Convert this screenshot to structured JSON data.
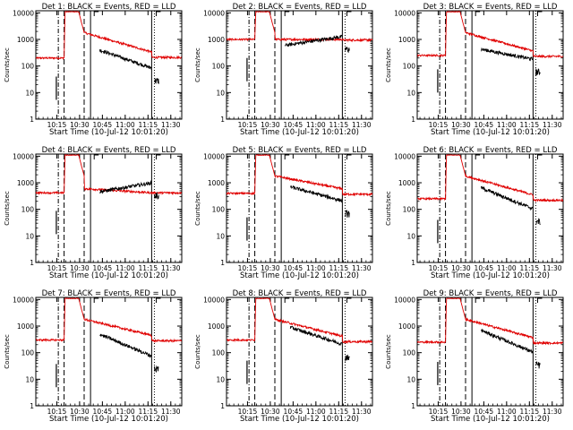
{
  "chart_data": [
    {
      "type": "line",
      "title": "Det 1: BLACK = Events, RED = LLD",
      "bump_mult": 1.0,
      "red_pre": 200,
      "red_end": 210,
      "black_post": 400,
      "black_end": 28,
      "black_gap": [
        10.62,
        10.72
      ],
      "black_pre_spike": 16
    },
    {
      "type": "line",
      "title": "Det 2: BLACK = Events, RED = LLD",
      "bump_mult": 1.0,
      "red_pre": 1000,
      "red_end": 950,
      "black_post": 600,
      "black_end": 430,
      "black_gap": [
        10.62,
        10.66
      ],
      "black_pre_spike": 80,
      "black_dip": true
    },
    {
      "type": "line",
      "title": "Det 3: BLACK = Events, RED = LLD",
      "bump_mult": 1.0,
      "red_pre": 250,
      "red_end": 230,
      "black_post": 430,
      "black_end": 60,
      "black_gap": [
        10.62,
        10.72
      ],
      "black_pre_spike": 30
    },
    {
      "type": "line",
      "title": "Det 4: BLACK = Events, RED = LLD",
      "bump_mult": 1.0,
      "red_pre": 420,
      "red_end": 420,
      "black_post": 460,
      "black_end": 330,
      "black_gap": [
        10.62,
        10.72
      ],
      "black_pre_spike": 35,
      "red_flat_post": true
    },
    {
      "type": "line",
      "title": "Det 5: BLACK = Events, RED = LLD",
      "bump_mult": 1.0,
      "red_pre": 400,
      "red_end": 370,
      "black_post": 700,
      "black_end": 70,
      "black_gap": [
        10.62,
        10.72
      ],
      "black_pre_spike": 20
    },
    {
      "type": "line",
      "title": "Det 6: BLACK = Events, RED = LLD",
      "bump_mult": 1.0,
      "red_pre": 250,
      "red_end": 220,
      "black_post": 650,
      "black_end": 35,
      "black_gap": [
        10.62,
        10.72
      ],
      "black_pre_spike": 16
    },
    {
      "type": "line",
      "title": "Det 7: BLACK = Events, RED = LLD",
      "bump_mult": 1.0,
      "red_pre": 300,
      "red_end": 280,
      "black_post": 500,
      "black_end": 25,
      "black_gap": [
        10.62,
        10.72
      ],
      "black_pre_spike": 15
    },
    {
      "type": "line",
      "title": "Det 8: BLACK = Events, RED = LLD",
      "bump_mult": 1.0,
      "red_pre": 300,
      "red_end": 260,
      "black_post": 900,
      "black_end": 70,
      "black_gap": [
        10.62,
        10.72
      ],
      "black_pre_spike": 20
    },
    {
      "type": "line",
      "title": "Det 9: BLACK = Events, RED = LLD",
      "bump_mult": 1.0,
      "red_pre": 250,
      "red_end": 230,
      "black_post": 700,
      "black_end": 35,
      "black_gap": [
        10.62,
        10.72
      ],
      "black_pre_spike": 18
    }
  ],
  "shared": {
    "xlabel": "Start Time (10-Jul-12 10:01:20)",
    "ylabel": "Counts/sec",
    "x_ticks": [
      "10:15",
      "10:30",
      "10:45",
      "11:00",
      "11:15",
      "11:30"
    ],
    "x_tick_values": [
      10.25,
      10.5,
      10.75,
      11.0,
      11.25,
      11.5
    ],
    "y_ticks": [
      "1",
      "10",
      "100",
      "1000",
      "10000"
    ],
    "y_tick_values": [
      1,
      10,
      100,
      1000,
      10000
    ],
    "xlim": [
      10.02,
      11.62
    ],
    "ylim": [
      1,
      12000
    ],
    "y_scale": "log",
    "vlines": [
      {
        "x": 10.2667,
        "style": "dash-dot"
      },
      {
        "x": 10.33,
        "style": "dashed"
      },
      {
        "x": 10.55,
        "style": "dashed"
      },
      {
        "x": 10.62,
        "style": "solid"
      },
      {
        "x": 11.29,
        "style": "solid"
      },
      {
        "x": 11.32,
        "style": "dotted"
      }
    ],
    "colors": {
      "events": "#000000",
      "lld": "#e00000"
    },
    "series_names": [
      "BLACK = Events",
      "RED = LLD"
    ]
  }
}
